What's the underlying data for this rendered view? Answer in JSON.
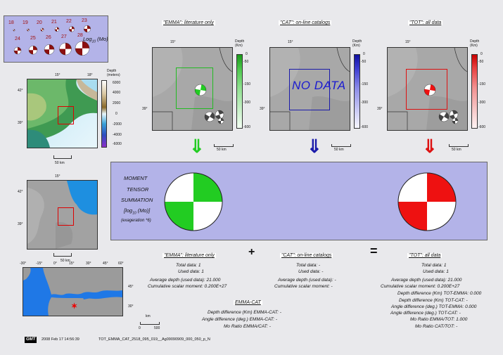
{
  "legend": {
    "top_exponents": [
      "18",
      "19",
      "20",
      "21",
      "22",
      "23"
    ],
    "bottom_exponents": [
      "24",
      "25",
      "26",
      "27",
      "28"
    ],
    "label_prefix": "Log",
    "label_sub": "10",
    "label_suffix": " (Mo)"
  },
  "left_map": {
    "lon_labels": [
      "15°",
      "18°"
    ],
    "lat_labels": [
      "42°",
      "39°"
    ],
    "depth_title": "Depth\n(meters)",
    "depth_ticks": [
      "6000",
      "4000",
      "2000",
      "0",
      "-2000",
      "-4000",
      "-6000"
    ],
    "scale_label": "50 km"
  },
  "mid_map": {
    "lon_label": "15°",
    "lat_labels": [
      "42°",
      "39°"
    ],
    "scale_label": "50 km"
  },
  "panels": [
    {
      "title": "\"EMMA\": literature only",
      "lon": "15°",
      "lat": "39°",
      "depth_title": "Depth\n(Km)",
      "depth_ticks": [
        "0",
        "-50",
        "-150",
        "-300",
        "-600"
      ],
      "scale": "50 km",
      "color": "#22bb22",
      "nodata": ""
    },
    {
      "title": "\"CAT\": on-line catalogs",
      "lon": "15°",
      "lat": "39°",
      "depth_title": "Depth\n(Km)",
      "depth_ticks": [
        "0",
        "-50",
        "-150",
        "-300",
        "-600"
      ],
      "scale": "50 km",
      "color": "#1a1aaa",
      "nodata": "NO DATA"
    },
    {
      "title": "\"TOT\": all data",
      "lon": "15°",
      "lat": "39°",
      "depth_title": "Depth\n(Km)",
      "depth_ticks": [
        "0",
        "-50",
        "-150",
        "-300",
        "-600"
      ],
      "scale": "50 km",
      "color": "#dd1111",
      "nodata": ""
    }
  ],
  "summation": {
    "line1": "MOMENT",
    "line2": "TENSOR",
    "line3": "SUMMATION",
    "line4_prefix": "[log",
    "line4_sub": "10",
    "line4_suffix": " (Mo)]",
    "line5": "(exageration *6)",
    "colors": {
      "emma": "#22cc22",
      "tot": "#ee1111"
    }
  },
  "ops": {
    "plus": "+",
    "equals": "="
  },
  "stats_emma": {
    "title": "\"EMMA\": literature only",
    "total": "Total data:    1",
    "used": "Used data:    1",
    "avg_depth": "Average depth (used data):   21.000",
    "moment": "Cumulative scalar moment: 0.200E+27"
  },
  "stats_cat": {
    "title": "\"CAT\": on-line catalogs",
    "total": "Total data: -",
    "used": "Used data: -",
    "avg_depth": "Average depth (used data): -",
    "moment": "Cumulative scalar moment: -"
  },
  "stats_tot": {
    "title": "\"TOT\": all data",
    "total": "Total data:    1",
    "used": "Used data:    1",
    "avg_depth": "Average depth (used data):   21.000",
    "moment": "Cumulative scalar moment: 0.200E+27",
    "depth_diff_cat": "Depth difference (Km) TOT-CAT: -",
    "depth_diff_emma": "Depth difference (Km) TOT-EMMA:    0.000",
    "angle_cat": "Angle difference (deg.) TOT-CAT: -",
    "angle_emma": "Angle difference (deg.) TOT-EMMA:    0.000",
    "mo_emma": "Mo Ratio EMMA/TOT:    1.000",
    "mo_cat": "Mo Ratio CAT/TOT: -"
  },
  "emma_cat": {
    "title": "EMMA-CAT",
    "depth": "Depth difference (Km) EMMA-CAT: -",
    "angle": "Angle difference (deg.) EMMA-CAT: -",
    "mo": "Mo Ratio EMMA/CAT: -"
  },
  "world_map": {
    "lon_labels": [
      "-30°",
      "-15°",
      "0°",
      "15°",
      "30°",
      "45°",
      "60°"
    ],
    "lat_labels": [
      "45°",
      "30°"
    ],
    "scale_unit": "km",
    "scale_values": [
      "0",
      "500"
    ]
  },
  "footer": {
    "logo": "GMT",
    "timestamp": "2008 Feb 17 14:56:39",
    "filename": "TOT_EMMA_CAT_2518_095_019__Ag09090909_000_050_p_N"
  }
}
